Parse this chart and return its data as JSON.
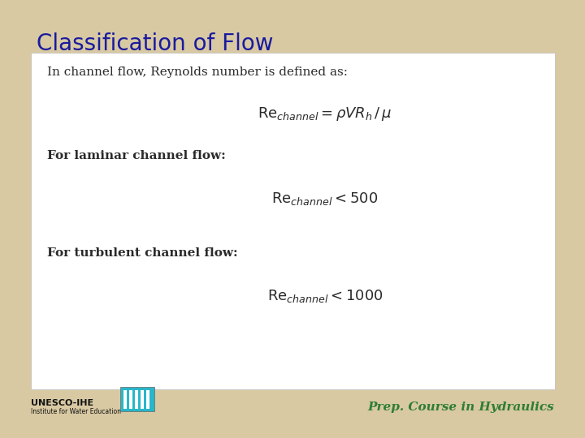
{
  "title": "Classification of Flow",
  "title_color": "#1a1a9e",
  "background_color": "#d8c9a3",
  "box_color": "#ffffff",
  "text_color": "#2a2a2a",
  "footer_text": "Prep. Course in Hydraulics",
  "footer_color": "#2e7d32",
  "line1_text": "In channel flow, Reynolds number is defined as:",
  "line2_text": "For laminar channel flow:",
  "line3_text": "For turbulent channel flow:",
  "title_fontsize": 20,
  "body_fontsize": 11,
  "formula_fontsize": 13
}
